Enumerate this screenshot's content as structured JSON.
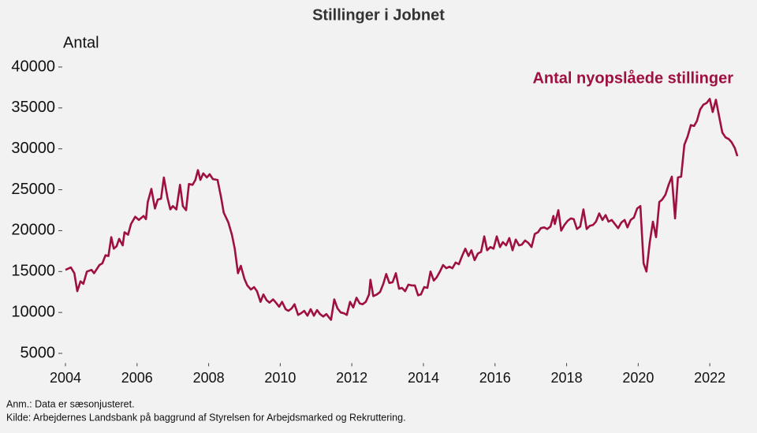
{
  "chart_data": {
    "type": "line",
    "title": "Stillinger i Jobnet",
    "y_label": "Antal",
    "notes": [
      "Anm.: Data er sæsonjusteret.",
      "Kilde: Arbejdernes Landsbank på baggrund af Styrelsen for Arbejdsmarked og Rekruttering."
    ],
    "x": [
      2004.0,
      2004.15,
      2004.25,
      2004.33,
      2004.42,
      2004.5,
      2004.6,
      2004.73,
      2004.8,
      2004.95,
      2005.03,
      2005.12,
      2005.2,
      2005.28,
      2005.35,
      2005.43,
      2005.5,
      2005.6,
      2005.65,
      2005.75,
      2005.83,
      2005.95,
      2006.05,
      2006.18,
      2006.25,
      2006.3,
      2006.4,
      2006.5,
      2006.58,
      2006.67,
      2006.75,
      2006.85,
      2006.93,
      2007.0,
      2007.1,
      2007.2,
      2007.28,
      2007.37,
      2007.45,
      2007.55,
      2007.63,
      2007.7,
      2007.77,
      2007.85,
      2007.95,
      2008.03,
      2008.12,
      2008.25,
      2008.35,
      2008.42,
      2008.55,
      2008.65,
      2008.73,
      2008.82,
      2008.9,
      2009.0,
      2009.08,
      2009.18,
      2009.27,
      2009.35,
      2009.45,
      2009.53,
      2009.62,
      2009.7,
      2009.8,
      2009.88,
      2009.97,
      2010.05,
      2010.15,
      2010.23,
      2010.32,
      2010.4,
      2010.5,
      2010.58,
      2010.67,
      2010.76,
      2010.85,
      2010.94,
      2011.03,
      2011.11,
      2011.2,
      2011.29,
      2011.38,
      2011.42,
      2011.51,
      2011.6,
      2011.69,
      2011.78,
      2011.86,
      2011.95,
      2012.04,
      2012.13,
      2012.22,
      2012.3,
      2012.39,
      2012.48,
      2012.52,
      2012.6,
      2012.7,
      2012.79,
      2012.88,
      2012.96,
      2013.05,
      2013.14,
      2013.23,
      2013.32,
      2013.4,
      2013.49,
      2013.58,
      2013.67,
      2013.76,
      2013.85,
      2013.93,
      2014.02,
      2014.11,
      2014.2,
      2014.29,
      2014.37,
      2014.46,
      2014.55,
      2014.64,
      2014.73,
      2014.81,
      2014.9,
      2014.99,
      2015.08,
      2015.17,
      2015.26,
      2015.34,
      2015.43,
      2015.52,
      2015.61,
      2015.7,
      2015.78,
      2015.87,
      2015.96,
      2016.05,
      2016.14,
      2016.22,
      2016.31,
      2016.4,
      2016.49,
      2016.58,
      2016.67,
      2016.75,
      2016.84,
      2016.93,
      2017.02,
      2017.11,
      2017.2,
      2017.28,
      2017.37,
      2017.46,
      2017.55,
      2017.63,
      2017.67,
      2017.77,
      2017.85,
      2017.94,
      2018.03,
      2018.12,
      2018.2,
      2018.29,
      2018.38,
      2018.47,
      2018.56,
      2018.65,
      2018.74,
      2018.82,
      2018.91,
      2019.0,
      2019.09,
      2019.17,
      2019.26,
      2019.35,
      2019.44,
      2019.53,
      2019.62,
      2019.7,
      2019.79,
      2019.88,
      2019.97,
      2020.06,
      2020.15,
      2020.23,
      2020.32,
      2020.41,
      2020.5,
      2020.59,
      2020.67,
      2020.76,
      2020.85,
      2020.94,
      2021.03,
      2021.11,
      2021.2,
      2021.29,
      2021.38,
      2021.47,
      2021.56,
      2021.64,
      2021.73,
      2021.82,
      2021.91,
      2022.0,
      2022.08,
      2022.17,
      2022.26,
      2022.35,
      2022.44,
      2022.53,
      2022.61,
      2022.7,
      2022.77
    ],
    "series": [
      {
        "name": "Antal nyopslåede stillinger",
        "color": "#9e1040",
        "values": [
          15200,
          15500,
          14800,
          12600,
          13800,
          13500,
          15000,
          15200,
          14800,
          15800,
          16000,
          17000,
          16900,
          19200,
          17800,
          18100,
          19000,
          18200,
          19800,
          19500,
          20800,
          21700,
          21300,
          21800,
          21400,
          23500,
          25100,
          22700,
          23800,
          23900,
          26500,
          24000,
          22600,
          23000,
          22600,
          25600,
          23000,
          22500,
          25700,
          25600,
          26200,
          27400,
          26200,
          27000,
          26500,
          26900,
          26300,
          26200,
          24000,
          22200,
          21000,
          19500,
          17800,
          14800,
          15700,
          14100,
          13300,
          12800,
          13100,
          12600,
          11300,
          12200,
          11500,
          11200,
          11600,
          11200,
          10700,
          11300,
          10400,
          10200,
          10500,
          11000,
          9700,
          9900,
          10200,
          9600,
          10400,
          9600,
          10300,
          9800,
          9500,
          9800,
          9300,
          9100,
          11600,
          10500,
          10000,
          9900,
          9700,
          11300,
          10600,
          11800,
          11100,
          11000,
          11300,
          12200,
          14000,
          12000,
          12200,
          12500,
          13500,
          14700,
          13600,
          13700,
          14800,
          12900,
          13000,
          12600,
          13400,
          13300,
          13300,
          12100,
          12200,
          13100,
          13000,
          15000,
          13900,
          14300,
          15000,
          15800,
          15400,
          15600,
          15400,
          16100,
          15900,
          16900,
          17800,
          16900,
          17600,
          16400,
          17200,
          17400,
          19300,
          17600,
          18000,
          17800,
          19300,
          18000,
          18600,
          18200,
          19100,
          17600,
          18900,
          18200,
          18300,
          18800,
          18500,
          18000,
          19600,
          19800,
          20300,
          20400,
          20200,
          20500,
          21800,
          20800,
          22500,
          20000,
          20700,
          21200,
          21500,
          21400,
          20200,
          20500,
          22600,
          20200,
          20600,
          20700,
          21100,
          22100,
          21300,
          21900,
          21100,
          21300,
          20800,
          20300,
          21000,
          21300,
          20400,
          21300,
          21600,
          22700,
          23000,
          16000,
          15000,
          18500,
          21100,
          19200,
          23500,
          23800,
          24400,
          25600,
          26600,
          21500,
          26500,
          26600,
          30500,
          31500,
          32900,
          32800,
          33400,
          34800,
          35400,
          35600,
          36100,
          34500,
          36000,
          34000,
          32000,
          31400,
          31200,
          30800,
          30100,
          29100
        ]
      }
    ],
    "xlim": [
      2004,
      2022.9
    ],
    "xticks": [
      2004,
      2006,
      2008,
      2010,
      2012,
      2014,
      2016,
      2018,
      2020,
      2022
    ],
    "ylim": [
      4000,
      41000
    ],
    "yticks": [
      5000,
      10000,
      15000,
      20000,
      25000,
      30000,
      35000,
      40000
    ]
  }
}
